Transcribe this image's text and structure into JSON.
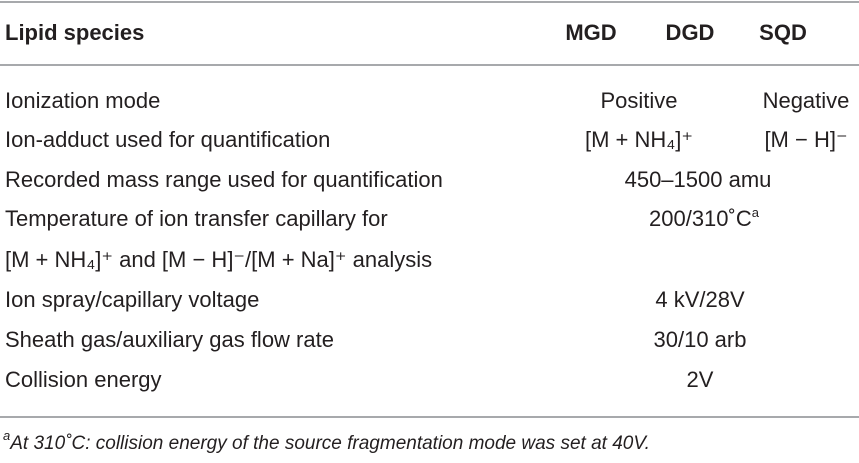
{
  "table": {
    "header": [
      "Lipid species",
      "MGD",
      "DGD",
      "SQD"
    ],
    "rows": [
      {
        "label": "Ionization mode",
        "cells": [
          "Positive",
          "Negative"
        ]
      },
      {
        "label": "Ion-adduct used for quantification",
        "cells": [
          "[M + NH₄]⁺",
          "[M − H]⁻"
        ]
      },
      {
        "label": "Recorded mass range used for quantification",
        "cells": [
          "450–1500 amu"
        ]
      },
      {
        "label": [
          "Temperature of ion transfer capillary for",
          "[M + NH₄]⁺ and [M − H]⁻/[M + Na]⁺ analysis"
        ],
        "cells": [
          "200/310˚C"
        ]
      },
      {
        "label": "Ion spray/capillary voltage",
        "cells": [
          "4 kV/28V"
        ]
      },
      {
        "label": "Sheath gas/auxiliary gas flow rate",
        "cells": [
          "30/10 arb"
        ]
      },
      {
        "label": "Collision energy",
        "cells": [
          "2V"
        ]
      }
    ]
  },
  "footnote": {
    "marker": "a",
    "text": "At 310˚C: collision energy of the source fragmentation mode was set at 40V."
  }
}
